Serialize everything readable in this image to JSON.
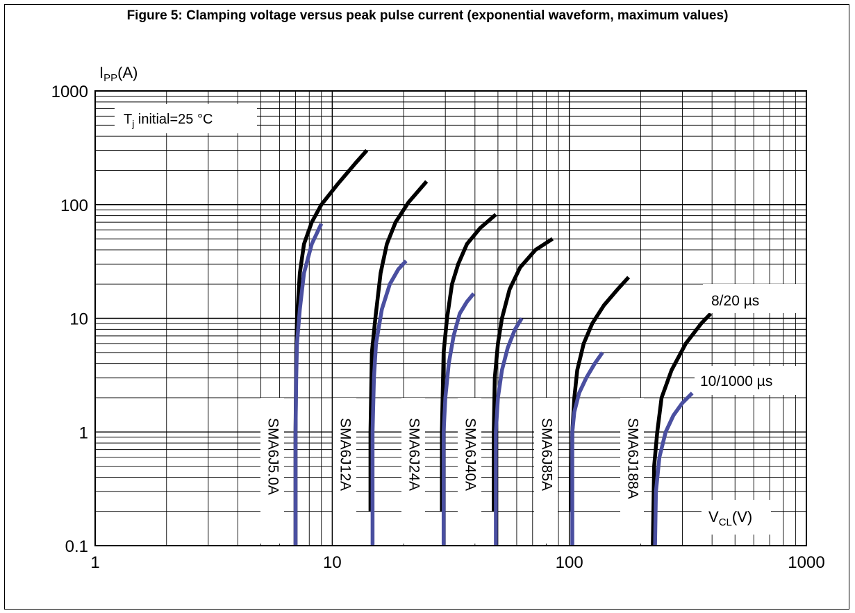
{
  "figure_title": "Figure 5: Clamping voltage versus peak pulse current (exponential waveform, maximum values)",
  "chart_data": {
    "type": "line",
    "x_scale": "log",
    "y_scale": "log",
    "xlim": [
      1,
      1000
    ],
    "ylim": [
      0.1,
      1000
    ],
    "x_ticks": [
      "1",
      "10",
      "100",
      "1000"
    ],
    "y_ticks": [
      "0.1",
      "1",
      "10",
      "100",
      "1000"
    ],
    "ylabel_main": "I",
    "ylabel_sub": "PP",
    "ylabel_unit": "(A)",
    "xlabel_main": "V",
    "xlabel_sub": "CL",
    "xlabel_unit": "(V)",
    "annotation_main": "T",
    "annotation_sub": "j",
    "annotation_rest": " initial=25 °C",
    "legend_8_20": "8/20 µs",
    "legend_10_1000": "10/1000 µs",
    "grid": true,
    "colors": {
      "8/20 µs": "#000000",
      "10/1000 µs": "#4a4fa0"
    },
    "devices": [
      {
        "label": "SMA6J5.0A",
        "s8_20": [
          [
            7.0,
            0.1
          ],
          [
            7.0,
            1
          ],
          [
            7.05,
            5
          ],
          [
            7.1,
            10
          ],
          [
            7.3,
            25
          ],
          [
            7.6,
            45
          ],
          [
            8.2,
            70
          ],
          [
            9.0,
            100
          ],
          [
            10.5,
            150
          ],
          [
            12.5,
            230
          ],
          [
            14.0,
            300
          ]
        ],
        "s10_1000": [
          [
            7.0,
            0.1
          ],
          [
            7.0,
            1
          ],
          [
            7.05,
            3
          ],
          [
            7.1,
            6
          ],
          [
            7.3,
            12
          ],
          [
            7.6,
            25
          ],
          [
            8.2,
            45
          ],
          [
            9.0,
            68
          ]
        ]
      },
      {
        "label": "SMA6J12A",
        "s8_20": [
          [
            14.5,
            0.2
          ],
          [
            14.5,
            1
          ],
          [
            14.7,
            5
          ],
          [
            15.2,
            10
          ],
          [
            16.0,
            25
          ],
          [
            17.0,
            45
          ],
          [
            18.5,
            70
          ],
          [
            21.0,
            105
          ],
          [
            25.0,
            160
          ]
        ],
        "s10_1000": [
          [
            14.8,
            0.1
          ],
          [
            14.8,
            1
          ],
          [
            15.0,
            3
          ],
          [
            15.3,
            6
          ],
          [
            16.2,
            12
          ],
          [
            17.5,
            20
          ],
          [
            19.0,
            27
          ],
          [
            20.5,
            32
          ]
        ]
      },
      {
        "label": "SMA6J24A",
        "s8_20": [
          [
            29.0,
            0.2
          ],
          [
            29.0,
            1
          ],
          [
            29.5,
            5
          ],
          [
            30.5,
            10
          ],
          [
            32.0,
            20
          ],
          [
            34.0,
            30
          ],
          [
            37.0,
            45
          ],
          [
            42.0,
            62
          ],
          [
            49.0,
            82
          ]
        ],
        "s10_1000": [
          [
            29.5,
            0.1
          ],
          [
            29.5,
            1
          ],
          [
            30.0,
            2
          ],
          [
            31.0,
            4
          ],
          [
            32.5,
            7
          ],
          [
            34.5,
            11
          ],
          [
            37.0,
            14
          ],
          [
            39.5,
            16.5
          ]
        ]
      },
      {
        "label": "SMA6J40A",
        "s8_20": [
          [
            48.0,
            0.2
          ],
          [
            48.0,
            1
          ],
          [
            48.5,
            3
          ],
          [
            50.0,
            6
          ],
          [
            52.0,
            10
          ],
          [
            56.0,
            18
          ],
          [
            62.0,
            28
          ],
          [
            72.0,
            40
          ],
          [
            85.0,
            50
          ]
        ],
        "s10_1000": [
          [
            49.0,
            0.1
          ],
          [
            49.0,
            1
          ],
          [
            50.0,
            2
          ],
          [
            52.0,
            3.5
          ],
          [
            55.0,
            5.5
          ],
          [
            59.0,
            8
          ],
          [
            63.0,
            10
          ]
        ]
      },
      {
        "label": "SMA6J85A",
        "s8_20": [
          [
            102.0,
            0.2
          ],
          [
            103.0,
            1
          ],
          [
            105.0,
            2
          ],
          [
            108.0,
            3.5
          ],
          [
            115.0,
            6
          ],
          [
            125.0,
            9
          ],
          [
            140.0,
            13
          ],
          [
            160.0,
            18
          ],
          [
            178.0,
            23
          ]
        ],
        "s10_1000": [
          [
            103.0,
            0.1
          ],
          [
            103.0,
            1
          ],
          [
            105.0,
            1.5
          ],
          [
            110.0,
            2.2
          ],
          [
            118.0,
            3
          ],
          [
            128.0,
            4
          ],
          [
            138.0,
            5
          ]
        ]
      },
      {
        "label": "SMA6J188A",
        "s8_20": [
          [
            225.0,
            0.1
          ],
          [
            228.0,
            0.5
          ],
          [
            235.0,
            1
          ],
          [
            245.0,
            2
          ],
          [
            270.0,
            3.5
          ],
          [
            310.0,
            6
          ],
          [
            360.0,
            9
          ],
          [
            395.0,
            11
          ]
        ],
        "s10_1000": [
          [
            230.0,
            0.1
          ],
          [
            232.0,
            0.3
          ],
          [
            240.0,
            0.6
          ],
          [
            255.0,
            1
          ],
          [
            275.0,
            1.4
          ],
          [
            300.0,
            1.8
          ],
          [
            330.0,
            2.2
          ]
        ]
      }
    ]
  }
}
